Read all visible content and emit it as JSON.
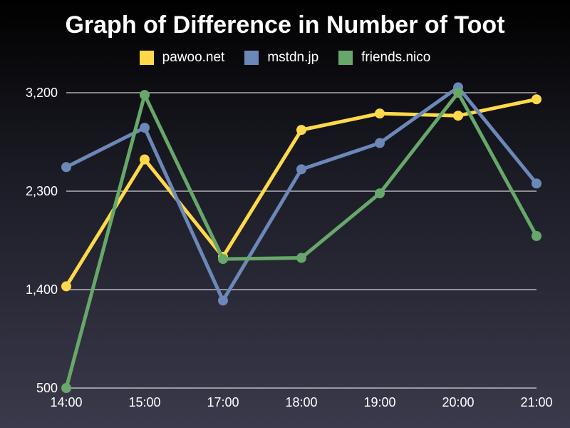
{
  "chart_data": {
    "type": "line",
    "title": "Graph of Difference in Number of Toot",
    "categories": [
      "14:00",
      "15:00",
      "17:00",
      "18:00",
      "19:00",
      "20:00",
      "21:00"
    ],
    "series": [
      {
        "name": "pawoo.net",
        "color": "#ffd94a",
        "values": [
          1430,
          2590,
          1700,
          2860,
          3010,
          2990,
          3140
        ]
      },
      {
        "name": "mstdn.jp",
        "color": "#6b88b8",
        "values": [
          2520,
          2880,
          1300,
          2500,
          2740,
          3250,
          2370
        ]
      },
      {
        "name": "friends.nico",
        "color": "#67a86a",
        "values": [
          500,
          3180,
          1680,
          1690,
          2280,
          3200,
          1890
        ]
      }
    ],
    "yticks": [
      "3,200",
      "2,300",
      "1,400",
      "500"
    ],
    "ytick_values": [
      3200,
      2300,
      1400,
      500
    ],
    "ylim": [
      500,
      3200
    ],
    "grid": true,
    "legend": "top-center"
  }
}
